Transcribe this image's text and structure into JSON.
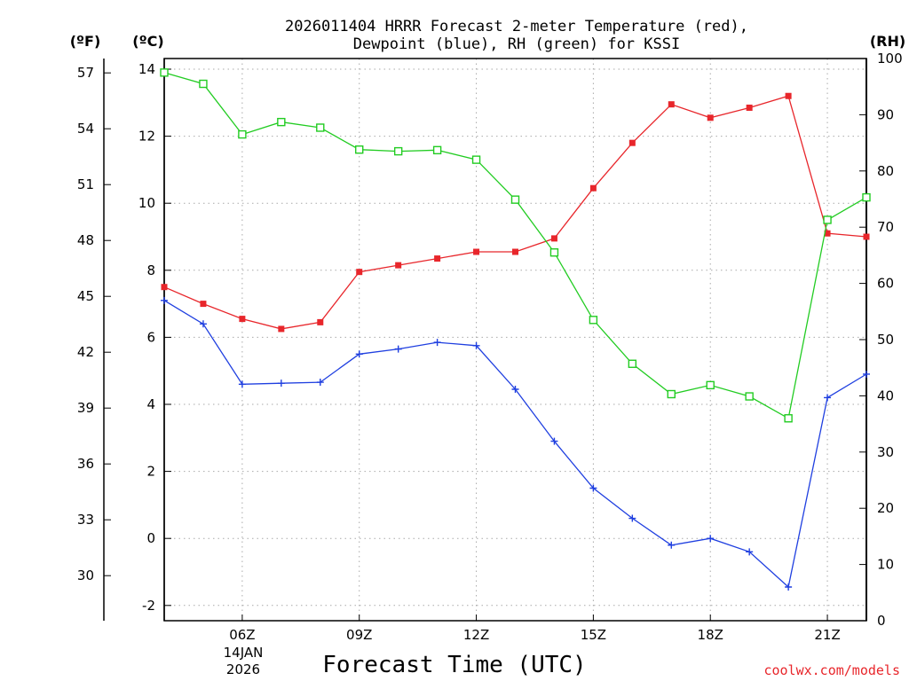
{
  "title_line1": "2026011404 HRRR Forecast 2-meter Temperature (red),",
  "title_line2": "Dewpoint (blue), RH (green) for KSSI",
  "watermark": "coolwx.com/models",
  "colors": {
    "temperature": "#e8262b",
    "dewpoint": "#1f3fe0",
    "rh": "#22cc22",
    "grid": "#a9a9a9"
  },
  "chart_data": {
    "type": "line",
    "xlabel": "Forecast Time (UTC)",
    "x_hours": [
      4,
      5,
      6,
      7,
      8,
      9,
      10,
      11,
      12,
      13,
      14,
      15,
      16,
      17,
      18,
      19,
      20,
      21,
      22
    ],
    "xlim": [
      4,
      22
    ],
    "x_ticks": [
      {
        "hour": 6,
        "label": "06Z"
      },
      {
        "hour": 9,
        "label": "09Z"
      },
      {
        "hour": 12,
        "label": "12Z"
      },
      {
        "hour": 15,
        "label": "15Z"
      },
      {
        "hour": 18,
        "label": "18Z"
      },
      {
        "hour": 21,
        "label": "21Z"
      }
    ],
    "date_label": [
      "14JAN",
      "2026"
    ],
    "left_axis_celsius": {
      "unit_label": "(ºC)",
      "ylim": [
        -2.5,
        14.3
      ],
      "ticks": [
        "14",
        "12",
        "10",
        "8",
        "6",
        "4",
        "2",
        "0",
        "-2"
      ]
    },
    "left_axis_fahrenheit": {
      "unit_label": "(ºF)",
      "ticks": [
        "57",
        "54",
        "51",
        "48",
        "45",
        "42",
        "39",
        "36",
        "33",
        "30"
      ]
    },
    "right_axis_rh": {
      "unit_label": "(RH)",
      "ylim": [
        0,
        100
      ],
      "ticks": [
        "100",
        "90",
        "80",
        "70",
        "60",
        "50",
        "40",
        "30",
        "20",
        "10",
        "0"
      ]
    },
    "series": [
      {
        "name": "2-meter Temperature",
        "axis": "celsius",
        "marker": "filled-square",
        "values": [
          7.5,
          7.0,
          6.55,
          6.25,
          6.45,
          7.95,
          8.15,
          8.35,
          8.55,
          8.55,
          8.95,
          10.45,
          11.8,
          12.95,
          12.55,
          12.85,
          13.2,
          9.1,
          9.0
        ]
      },
      {
        "name": "Dewpoint",
        "axis": "celsius",
        "marker": "plus",
        "values": [
          7.1,
          6.4,
          4.6,
          4.63,
          4.66,
          5.5,
          5.65,
          5.85,
          5.75,
          4.45,
          2.9,
          1.5,
          0.6,
          -0.2,
          0.0,
          -0.4,
          -1.45,
          4.2,
          4.9
        ]
      },
      {
        "name": "RH",
        "axis": "rh",
        "marker": "open-square",
        "values": [
          97.5,
          95.5,
          86.5,
          88.7,
          87.7,
          83.8,
          83.5,
          83.7,
          82.0,
          74.9,
          65.5,
          53.5,
          45.7,
          40.3,
          41.9,
          39.9,
          36.0,
          71.3,
          75.3
        ]
      }
    ]
  }
}
